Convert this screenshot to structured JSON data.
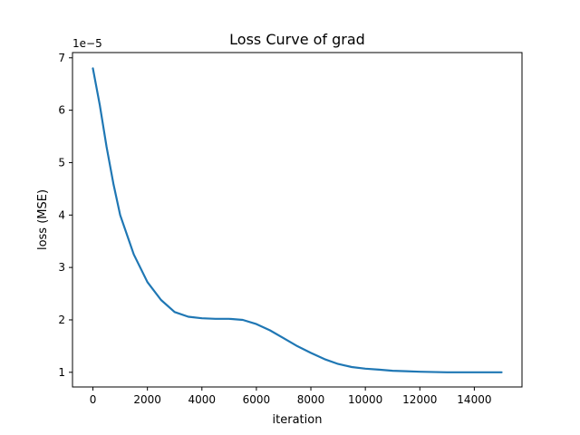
{
  "chart_data": {
    "type": "line",
    "title": "Loss Curve of grad",
    "xlabel": "iteration",
    "ylabel": "loss (MSE)",
    "y_offset_label": "1e−5",
    "xlim": [
      -750,
      15750
    ],
    "ylim": [
      0.72,
      7.1
    ],
    "grid": false,
    "legend": "none",
    "x_ticks": [
      0,
      2000,
      4000,
      6000,
      8000,
      10000,
      12000,
      14000
    ],
    "y_ticks": [
      1,
      2,
      3,
      4,
      5,
      6,
      7
    ],
    "series": [
      {
        "color": "#1f77b4",
        "x": [
          0,
          250,
          500,
          750,
          1000,
          1500,
          2000,
          2500,
          3000,
          3500,
          4000,
          4500,
          5000,
          5500,
          6000,
          6500,
          7000,
          7500,
          8000,
          8500,
          9000,
          9500,
          10000,
          10500,
          11000,
          11500,
          12000,
          13000,
          14000,
          15000
        ],
        "y": [
          6.8,
          6.1,
          5.3,
          4.6,
          4.0,
          3.25,
          2.72,
          2.38,
          2.15,
          2.06,
          2.03,
          2.02,
          2.02,
          2.0,
          1.92,
          1.8,
          1.65,
          1.5,
          1.37,
          1.25,
          1.16,
          1.1,
          1.07,
          1.05,
          1.03,
          1.02,
          1.01,
          1.0,
          1.0,
          1.0
        ]
      }
    ]
  }
}
